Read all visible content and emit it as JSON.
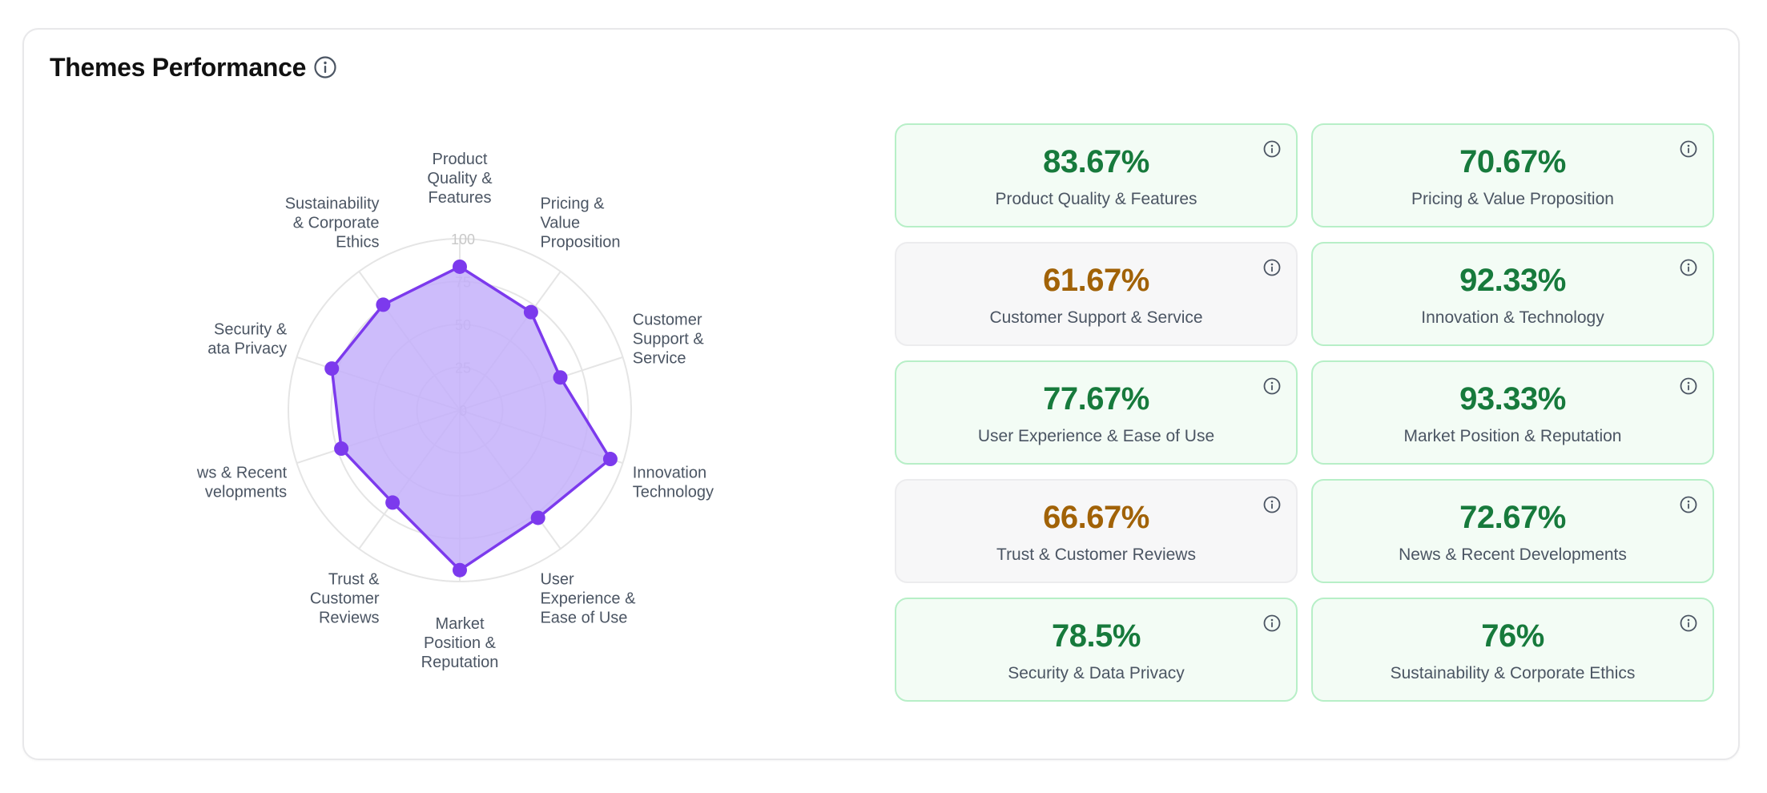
{
  "header": {
    "title": "Themes Performance"
  },
  "chart_data": {
    "type": "radar",
    "scale": {
      "min": 0,
      "max": 100,
      "ticks": [
        0,
        25,
        50,
        75,
        100
      ]
    },
    "axes": [
      {
        "label": [
          "Product",
          "Quality &",
          "Features"
        ],
        "value": 83.67
      },
      {
        "label": [
          "Pricing &",
          "Value",
          "Proposition"
        ],
        "value": 70.67
      },
      {
        "label": [
          "Customer",
          "Support &",
          "Service"
        ],
        "value": 61.67
      },
      {
        "label": [
          "Innovation",
          "Technology"
        ],
        "value": 92.33
      },
      {
        "label": [
          "User",
          "Experience &",
          "Ease of Use"
        ],
        "value": 77.67
      },
      {
        "label": [
          "Market",
          "Position &",
          "Reputation"
        ],
        "value": 93.33
      },
      {
        "label": [
          "Trust &",
          "Customer",
          "Reviews"
        ],
        "value": 66.67
      },
      {
        "label": [
          "ws & Recent",
          "velopments"
        ],
        "value": 72.67
      },
      {
        "label": [
          "Security &",
          "ata Privacy"
        ],
        "value": 78.5
      },
      {
        "label": [
          "Sustainability",
          "& Corporate",
          "Ethics"
        ],
        "value": 76
      }
    ],
    "colors": {
      "fill": "#c4b0fa",
      "stroke": "#7c3aed",
      "point": "#7c3aed",
      "grid": "#e5e5e5",
      "tick": "#c8c8c8",
      "label": "#4b5563"
    }
  },
  "tiles": [
    {
      "value": "83.67%",
      "label": "Product Quality & Features",
      "status": "good"
    },
    {
      "value": "70.67%",
      "label": "Pricing & Value Proposition",
      "status": "good"
    },
    {
      "value": "61.67%",
      "label": "Customer Support & Service",
      "status": "mid"
    },
    {
      "value": "92.33%",
      "label": "Innovation & Technology",
      "status": "good"
    },
    {
      "value": "77.67%",
      "label": "User Experience & Ease of Use",
      "status": "good"
    },
    {
      "value": "93.33%",
      "label": "Market Position & Reputation",
      "status": "good"
    },
    {
      "value": "66.67%",
      "label": "Trust & Customer Reviews",
      "status": "mid"
    },
    {
      "value": "72.67%",
      "label": "News & Recent Developments",
      "status": "good"
    },
    {
      "value": "78.5%",
      "label": "Security & Data Privacy",
      "status": "good"
    },
    {
      "value": "76%",
      "label": "Sustainability & Corporate Ethics",
      "status": "good"
    }
  ],
  "icons": {
    "info": "info-circle-icon"
  }
}
